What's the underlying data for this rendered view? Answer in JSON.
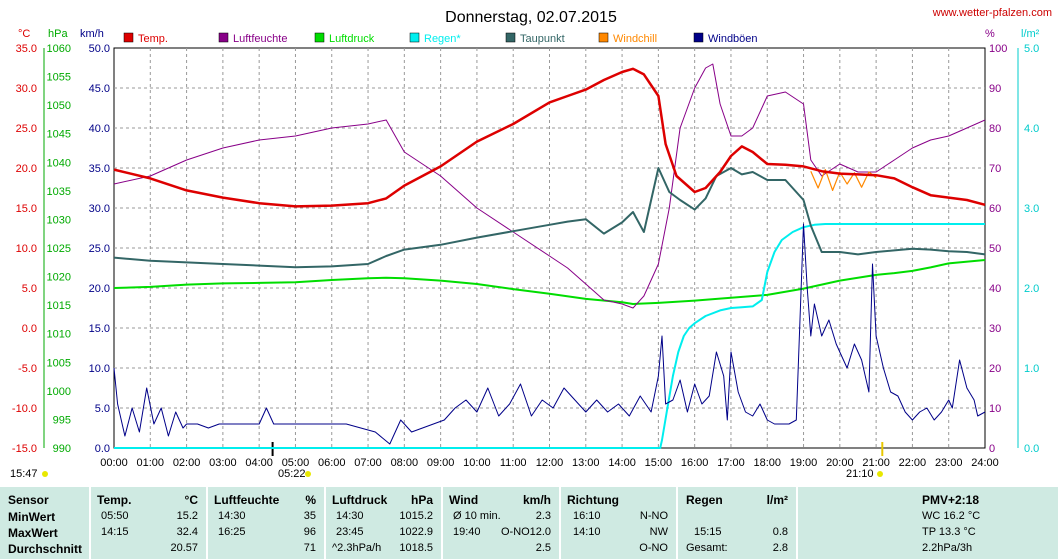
{
  "header": {
    "title": "Donnerstag, 02.07.2015",
    "site": "www.wetter-pfalzen.com",
    "left_time": "15:47",
    "sunrise_marker": "05:22",
    "sunset_marker": "21:10"
  },
  "units": {
    "temp": "°C",
    "pressure": "hPa",
    "wind": "km/h",
    "humidity": "%",
    "rain": "l/m²"
  },
  "legend": [
    {
      "label": "Temp.",
      "color": "#dd0000"
    },
    {
      "label": "Luftfeuchte",
      "color": "#880088"
    },
    {
      "label": "Luftdruck",
      "color": "#00dd00"
    },
    {
      "label": "Regen*",
      "color": "#00eeee"
    },
    {
      "label": "Taupunkt",
      "color": "#336666"
    },
    {
      "label": "Windchill",
      "color": "#ff8800"
    },
    {
      "label": "Windböen",
      "color": "#000088"
    }
  ],
  "chart_data": {
    "type": "line",
    "title": "Donnerstag, 02.07.2015",
    "x_ticks": [
      "00:00",
      "01:00",
      "02:00",
      "03:00",
      "04:00",
      "05:00",
      "06:00",
      "07:00",
      "08:00",
      "09:00",
      "10:00",
      "11:00",
      "12:00",
      "13:00",
      "14:00",
      "15:00",
      "16:00",
      "17:00",
      "18:00",
      "19:00",
      "20:00",
      "21:00",
      "22:00",
      "23:00",
      "24:00"
    ],
    "x_range_hours": [
      0,
      24
    ],
    "axes": {
      "temp": {
        "ticks": [
          "35.0",
          "30.0",
          "25.0",
          "20.0",
          "15.0",
          "10.0",
          "5.0",
          "0.0",
          "-5.0",
          "-10.0",
          "-15.0"
        ],
        "range": [
          -15,
          35
        ],
        "color": "#dd0000"
      },
      "pressure": {
        "ticks": [
          "1060",
          "1055",
          "1050",
          "1045",
          "1040",
          "1035",
          "1030",
          "1025",
          "1020",
          "1015",
          "1010",
          "1005",
          "1000",
          "995",
          "990"
        ],
        "range": [
          990,
          1060
        ],
        "color": "#00aa00"
      },
      "wind": {
        "ticks": [
          "50.0",
          "45.0",
          "40.0",
          "35.0",
          "30.0",
          "25.0",
          "20.0",
          "15.0",
          "10.0",
          "5.0",
          "0.0"
        ],
        "range": [
          0,
          50
        ],
        "color": "#000088"
      },
      "humidity": {
        "ticks": [
          "100",
          "90",
          "80",
          "70",
          "60",
          "50",
          "40",
          "30",
          "20",
          "10",
          "0"
        ],
        "range": [
          0,
          100
        ],
        "color": "#880088"
      },
      "rain": {
        "ticks": [
          "5.0",
          "4.0",
          "3.0",
          "2.0",
          "1.0",
          "0.0"
        ],
        "range": [
          0,
          5
        ],
        "color": "#00cccc"
      }
    },
    "grid": true,
    "series": [
      {
        "name": "Temp.",
        "axis": "temp",
        "color": "#dd0000",
        "x": [
          0,
          1,
          2,
          3,
          4,
          5,
          6,
          7,
          7.5,
          8,
          9,
          10,
          11,
          12,
          12.5,
          13,
          13.5,
          14,
          14.3,
          14.6,
          15,
          15.2,
          15.5,
          16,
          16.3,
          16.7,
          17,
          17.3,
          17.6,
          18,
          18.5,
          19,
          19.5,
          20,
          20.5,
          21,
          21.5,
          22,
          22.5,
          23,
          23.5,
          24
        ],
        "y": [
          19.8,
          18.7,
          17.2,
          16.3,
          15.6,
          15.2,
          15.3,
          15.6,
          16.2,
          17.8,
          20.2,
          23.3,
          25.5,
          28.2,
          29.0,
          29.8,
          31.0,
          32.0,
          32.4,
          31.7,
          29.0,
          23.0,
          19.0,
          17.0,
          17.5,
          19.5,
          21.5,
          22.7,
          22.0,
          20.5,
          20.4,
          20.2,
          19.6,
          19.3,
          19.2,
          19.1,
          18.7,
          17.6,
          16.6,
          16.3,
          16.0,
          15.4
        ]
      },
      {
        "name": "Luftfeuchte",
        "axis": "humidity",
        "color": "#880088",
        "x": [
          0,
          1,
          2,
          3,
          4,
          5,
          6,
          7,
          7.5,
          8,
          9,
          10,
          11,
          12,
          12.5,
          13,
          13.5,
          14,
          14.3,
          14.6,
          15,
          15.3,
          15.6,
          16,
          16.3,
          16.5,
          16.7,
          17,
          17.3,
          17.6,
          18,
          18.5,
          19,
          19.2,
          19.5,
          20,
          20.5,
          21,
          21.5,
          22,
          22.5,
          23,
          23.5,
          24
        ],
        "y": [
          66,
          68,
          72,
          75,
          77,
          78,
          80,
          81,
          82,
          74,
          68,
          60,
          54,
          48,
          45,
          41,
          37,
          36,
          35,
          38,
          46,
          60,
          80,
          90,
          95,
          96,
          86,
          78,
          78,
          80,
          88,
          89,
          86,
          72,
          68,
          71,
          69,
          69,
          72,
          75,
          77,
          78,
          80,
          82
        ]
      },
      {
        "name": "Luftdruck",
        "axis": "pressure",
        "color": "#00dd00",
        "x": [
          0,
          1,
          2,
          3,
          4,
          5,
          6,
          7,
          7.5,
          8,
          9,
          10,
          11,
          12,
          13,
          14,
          14.3,
          15,
          16,
          17,
          18,
          19,
          20,
          21,
          21.5,
          22,
          22.5,
          23,
          24
        ],
        "y": [
          1018.0,
          1018.2,
          1018.6,
          1018.8,
          1018.9,
          1019.0,
          1019.4,
          1019.7,
          1019.8,
          1019.7,
          1019.3,
          1018.7,
          1017.8,
          1017.0,
          1016.1,
          1015.5,
          1015.2,
          1015.4,
          1015.8,
          1016.3,
          1016.8,
          1017.9,
          1019.3,
          1020.3,
          1020.6,
          1021.0,
          1021.6,
          1022.3,
          1022.9
        ]
      },
      {
        "name": "Regen*",
        "axis": "rain",
        "color": "#00eeee",
        "x": [
          0,
          15.05,
          15.1,
          15.25,
          15.4,
          15.55,
          15.7,
          15.85,
          16,
          16.3,
          16.7,
          17,
          17.3,
          17.6,
          17.85,
          18,
          18.2,
          18.4,
          18.7,
          19,
          19.3,
          19.6,
          20,
          21,
          22,
          23,
          24
        ],
        "y": [
          0,
          0,
          0.1,
          0.5,
          0.9,
          1.2,
          1.4,
          1.5,
          1.56,
          1.65,
          1.72,
          1.75,
          1.76,
          1.77,
          1.85,
          2.2,
          2.45,
          2.6,
          2.7,
          2.76,
          2.79,
          2.8,
          2.8,
          2.8,
          2.8,
          2.8,
          2.8
        ]
      },
      {
        "name": "Taupunkt",
        "axis": "temp",
        "color": "#336666",
        "x": [
          0,
          1,
          2,
          3,
          4,
          5,
          6,
          7,
          7.5,
          8,
          9,
          10,
          11,
          12,
          12.5,
          13,
          13.5,
          14,
          14.3,
          14.6,
          15,
          15.3,
          15.6,
          16,
          16.3,
          16.6,
          17,
          17.3,
          17.6,
          18,
          18.5,
          19,
          19.2,
          19.5,
          20,
          20.5,
          21,
          21.5,
          22,
          22.5,
          23,
          23.5,
          24
        ],
        "y": [
          8.8,
          8.4,
          8.2,
          8.0,
          7.8,
          7.6,
          7.7,
          8.0,
          9.0,
          9.8,
          10.4,
          11.3,
          12.1,
          12.9,
          13.3,
          13.6,
          11.8,
          13.2,
          14.5,
          12.0,
          20.0,
          17.0,
          16.0,
          14.8,
          16.2,
          19.0,
          20.0,
          19.2,
          19.5,
          18.5,
          18.5,
          16.0,
          12.8,
          9.5,
          9.5,
          9.2,
          9.5,
          9.7,
          9.9,
          9.8,
          9.6,
          9.5,
          9.2
        ]
      },
      {
        "name": "Windchill",
        "axis": "temp",
        "color": "#ff8800",
        "x": [
          19.2,
          19.4,
          19.6,
          19.8,
          20.0,
          20.2,
          20.4,
          20.6,
          20.8,
          21.0
        ],
        "y": [
          19.6,
          17.5,
          19.8,
          17.2,
          19.5,
          18.0,
          19.4,
          17.6,
          19.5,
          18.8
        ]
      },
      {
        "name": "Windböen",
        "axis": "wind",
        "color": "#000088",
        "x": [
          0,
          0.1,
          0.3,
          0.5,
          0.7,
          0.9,
          1.1,
          1.3,
          1.5,
          1.7,
          1.9,
          2.0,
          2.3,
          2.6,
          2.9,
          3.2,
          3.6,
          4.0,
          4.2,
          4.4,
          4.8,
          5.2,
          5.6,
          6.0,
          6.4,
          6.8,
          7.2,
          7.6,
          7.9,
          8.2,
          8.5,
          8.8,
          9.1,
          9.4,
          9.7,
          10.0,
          10.3,
          10.6,
          10.9,
          11.2,
          11.5,
          11.8,
          12.1,
          12.4,
          12.7,
          13.0,
          13.3,
          13.6,
          13.9,
          14.2,
          14.5,
          14.8,
          15.0,
          15.1,
          15.2,
          15.4,
          15.6,
          15.8,
          16.0,
          16.2,
          16.4,
          16.6,
          16.8,
          16.9,
          17.0,
          17.2,
          17.4,
          17.6,
          17.8,
          18.0,
          18.2,
          18.4,
          18.6,
          18.8,
          19.0,
          19.1,
          19.2,
          19.3,
          19.5,
          19.7,
          19.9,
          20.0,
          20.2,
          20.4,
          20.6,
          20.8,
          20.9,
          21.0,
          21.2,
          21.4,
          21.6,
          21.8,
          22.0,
          22.2,
          22.4,
          22.6,
          22.8,
          23.0,
          23.1,
          23.3,
          23.5,
          23.7,
          23.8,
          24.0
        ],
        "y": [
          10.0,
          5.5,
          1.5,
          5.0,
          2.0,
          7.5,
          3.0,
          5.0,
          1.5,
          4.5,
          2.5,
          3.0,
          3.0,
          2.5,
          3.0,
          3.0,
          3.0,
          3.0,
          5.0,
          3.0,
          3.0,
          3.0,
          3.0,
          3.0,
          3.0,
          2.5,
          2.0,
          0.5,
          3.5,
          2.0,
          2.5,
          3.0,
          3.5,
          5.0,
          6.0,
          4.5,
          7.5,
          4.0,
          5.5,
          8.0,
          4.0,
          6.0,
          5.0,
          7.5,
          6.0,
          4.5,
          6.0,
          4.5,
          5.5,
          4.0,
          6.5,
          4.5,
          9.0,
          14.0,
          5.5,
          6.0,
          8.5,
          4.5,
          8.0,
          5.5,
          6.5,
          12.0,
          9.0,
          3.5,
          12.0,
          7.0,
          4.5,
          4.0,
          5.5,
          3.5,
          3.0,
          3.0,
          3.0,
          3.5,
          28.0,
          20.0,
          14.0,
          18.0,
          14.0,
          16.0,
          13.0,
          12.0,
          10.0,
          13.0,
          11.0,
          7.0,
          23.0,
          14.0,
          10.0,
          7.0,
          6.5,
          4.5,
          3.5,
          4.5,
          5.0,
          3.5,
          4.5,
          6.0,
          5.0,
          11.0,
          7.5,
          6.0,
          4.0,
          4.5
        ]
      }
    ]
  },
  "stats": {
    "columns": [
      {
        "title": "Sensor",
        "unit": "",
        "rows": [
          "MinWert",
          "MaxWert",
          "Durchschnitt"
        ]
      },
      {
        "title": "Temp.",
        "unit": "°C",
        "rows_time": [
          "05:50",
          "14:15",
          ""
        ],
        "rows_value": [
          "15.2",
          "32.4",
          "20.57"
        ]
      },
      {
        "title": "Luftfeuchte",
        "unit": "%",
        "rows_time": [
          "14:30",
          "16:25",
          ""
        ],
        "rows_value": [
          "35",
          "96",
          "71"
        ]
      },
      {
        "title": "Luftdruck",
        "unit": "hPa",
        "rows_time": [
          "14:30",
          "23:45",
          "^2.3hPa/h"
        ],
        "rows_value": [
          "1015.2",
          "1022.9",
          "1018.5"
        ]
      },
      {
        "title": "Wind",
        "unit": "km/h",
        "rows_time": [
          "Ø 10 min.",
          "19:40",
          ""
        ],
        "rows_mid": [
          "",
          "O-NO",
          ""
        ],
        "rows_value": [
          "2.3",
          "12.0",
          "2.5"
        ]
      },
      {
        "title": "Richtung",
        "unit": "",
        "rows_time": [
          "16:10",
          "14:10",
          ""
        ],
        "rows_value": [
          "N-NO",
          "NW",
          "O-NO"
        ]
      },
      {
        "title": "Regen",
        "unit": "l/m²",
        "rows_time": [
          "",
          "15:15",
          "Gesamt:"
        ],
        "rows_value": [
          "",
          "0.8",
          "2.8"
        ]
      },
      {
        "title": "PMV+2:18",
        "unit": "",
        "rows_value": [
          "WC 16.2 °C",
          "TP 13.3 °C",
          "2.2hPa/3h"
        ]
      }
    ]
  }
}
